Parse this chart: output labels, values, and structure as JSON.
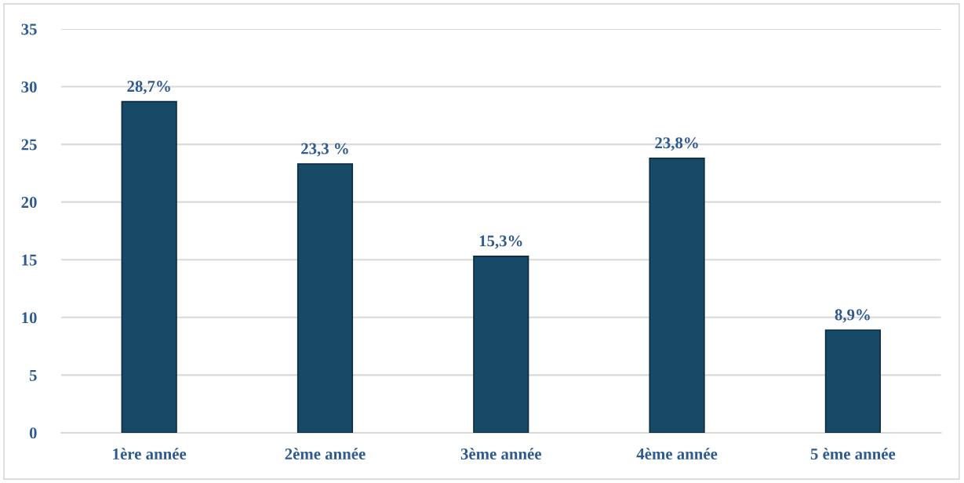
{
  "chart_data": {
    "type": "bar",
    "categories": [
      "1ère année",
      "2ème année",
      "3ème année",
      "4ème année",
      "5 ème année"
    ],
    "values": [
      28.7,
      23.3,
      15.3,
      23.8,
      8.9
    ],
    "color": "#174a66",
    "value_labels": [
      "28,7%",
      "23,3 %",
      "15,3%",
      "23,8%",
      "8,9%"
    ],
    "ylim": [
      0,
      35
    ],
    "yticks": [
      0,
      5,
      10,
      15,
      20,
      25,
      30,
      35
    ],
    "grid": "y",
    "legend": false
  }
}
